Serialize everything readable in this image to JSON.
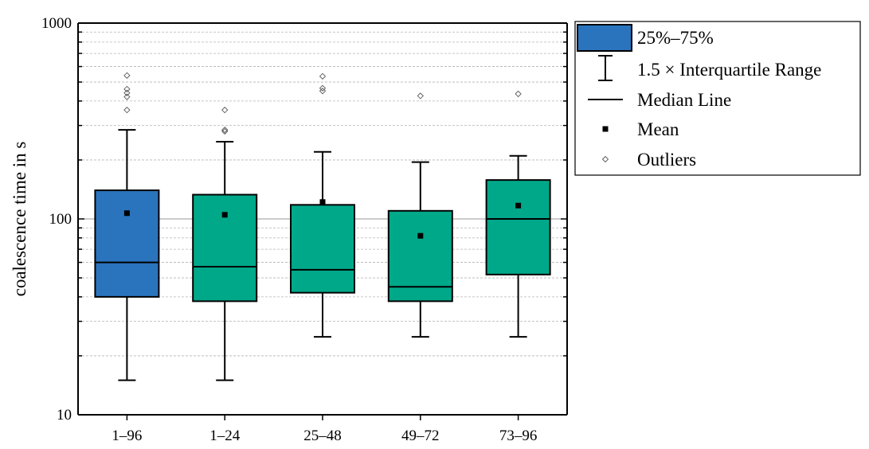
{
  "chart_data": {
    "type": "box",
    "ylabel": "coalescence time in s",
    "yscale": "log",
    "ylim": [
      10,
      1000
    ],
    "yticks": [
      {
        "value": 10,
        "label": "10"
      },
      {
        "value": 100,
        "label": "100"
      },
      {
        "value": 1000,
        "label": "1000"
      }
    ],
    "categories": [
      "1–96",
      "1–24",
      "25–48",
      "49–72",
      "73–96"
    ],
    "boxes": [
      {
        "category": "1–96",
        "q1": 40,
        "median": 60,
        "q3": 140,
        "whisker_low": 15,
        "whisker_high": 285,
        "mean": 107,
        "outliers": [
          360,
          420,
          440,
          460,
          540
        ],
        "color": "#2a74be"
      },
      {
        "category": "1–24",
        "q1": 38,
        "median": 57,
        "q3": 133,
        "whisker_low": 15,
        "whisker_high": 248,
        "mean": 105,
        "outliers": [
          280,
          285,
          360
        ],
        "color": "#00a88a"
      },
      {
        "category": "25–48",
        "q1": 42,
        "median": 55,
        "q3": 118,
        "whisker_low": 25,
        "whisker_high": 220,
        "mean": 122,
        "outliers": [
          450,
          465,
          535
        ],
        "color": "#00a88a"
      },
      {
        "category": "49–72",
        "q1": 38,
        "median": 45,
        "q3": 110,
        "whisker_low": 25,
        "whisker_high": 195,
        "mean": 82,
        "outliers": [
          425
        ],
        "color": "#00a88a"
      },
      {
        "category": "73–96",
        "q1": 52,
        "median": 100,
        "q3": 158,
        "whisker_low": 25,
        "whisker_high": 210,
        "mean": 117,
        "outliers": [
          435
        ],
        "color": "#00a88a"
      }
    ],
    "legend": {
      "position": "top-right",
      "items": [
        {
          "key": "box",
          "label": "25%–75%"
        },
        {
          "key": "whisker",
          "label": "1.5 × Interquartile Range"
        },
        {
          "key": "median",
          "label": "Median Line"
        },
        {
          "key": "mean",
          "label": "Mean"
        },
        {
          "key": "outlier",
          "label": "Outliers"
        }
      ]
    },
    "grid": true
  }
}
